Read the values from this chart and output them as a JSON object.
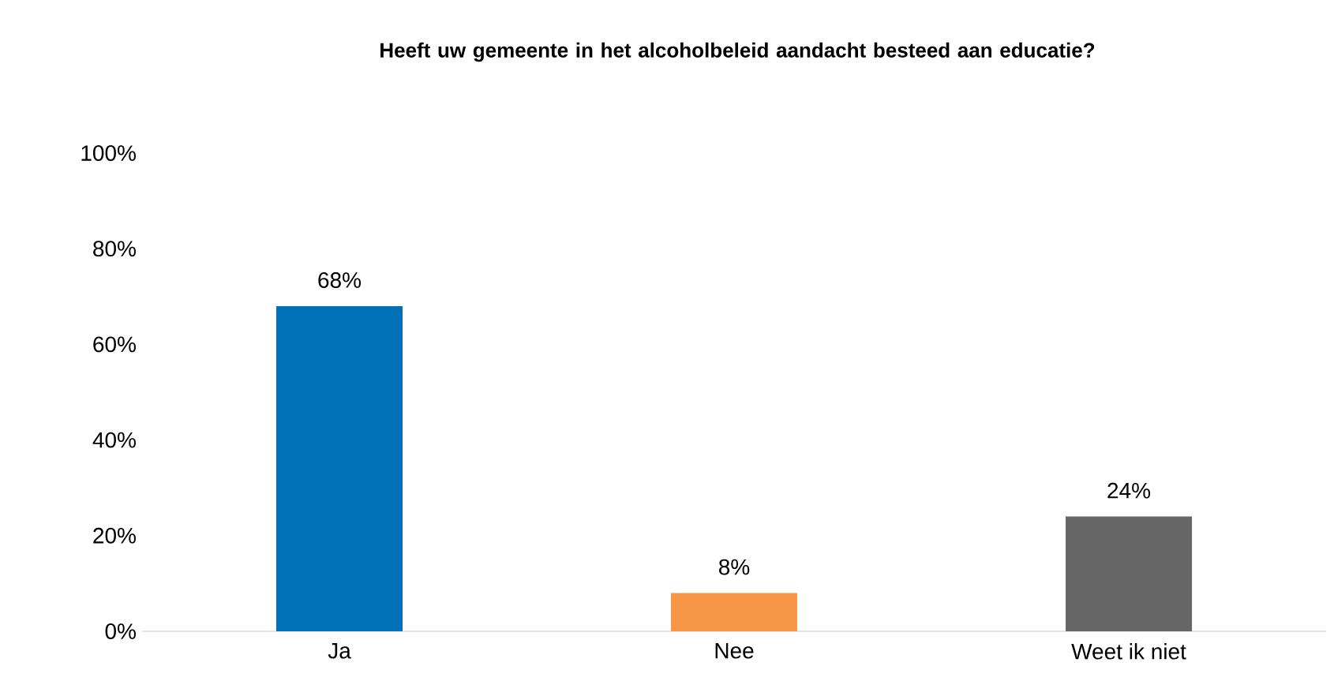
{
  "chart_data": {
    "type": "bar",
    "title": "Heeft uw gemeente in het alcoholbeleid aandacht besteed aan educatie?",
    "categories": [
      "Ja",
      "Nee",
      "Weet ik niet"
    ],
    "values": [
      68,
      8,
      24
    ],
    "colors": [
      "#0070b8",
      "#f79646",
      "#666666"
    ],
    "value_labels": [
      "68%",
      "8%",
      "24%"
    ],
    "ylim": [
      0,
      100
    ],
    "yticks": [
      {
        "value": 0,
        "label": "0%"
      },
      {
        "value": 20,
        "label": "20%"
      },
      {
        "value": 40,
        "label": "40%"
      },
      {
        "value": 60,
        "label": "60%"
      },
      {
        "value": 80,
        "label": "80%"
      },
      {
        "value": 100,
        "label": "100%"
      }
    ]
  }
}
